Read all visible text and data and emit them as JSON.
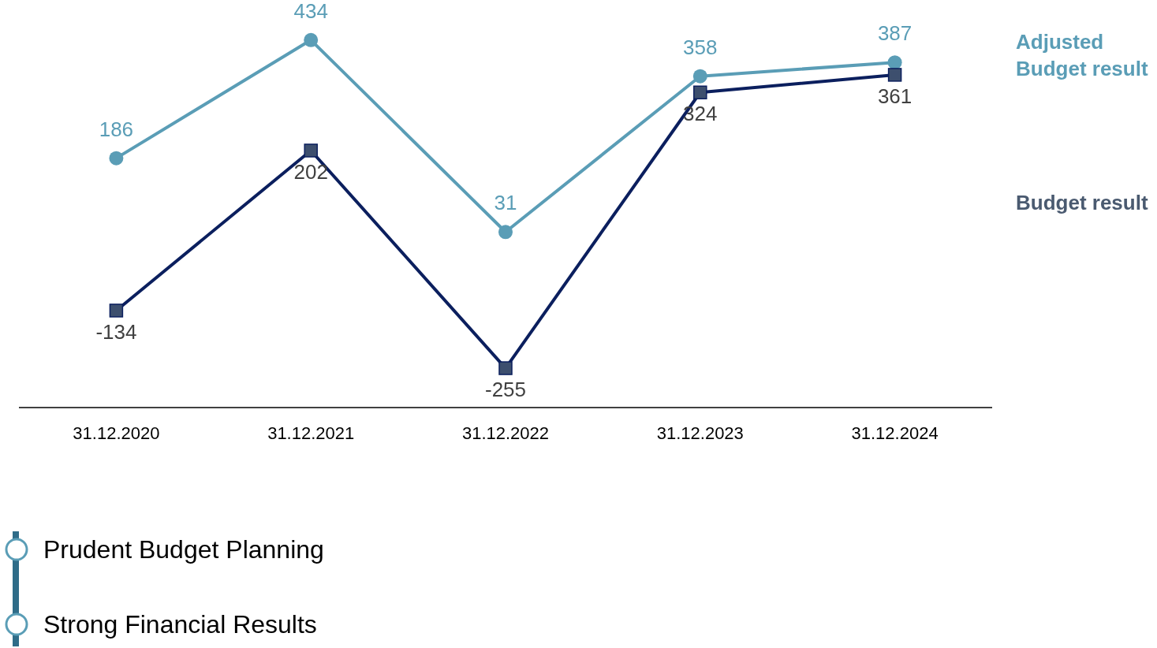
{
  "chart_data": {
    "type": "line",
    "categories": [
      "31.12.2020",
      "31.12.2021",
      "31.12.2022",
      "31.12.2023",
      "31.12.2024"
    ],
    "series": [
      {
        "name": "Adjusted Budget result",
        "color": "#5a9db6",
        "marker": "circle",
        "values": [
          186,
          434,
          31,
          358,
          387
        ]
      },
      {
        "name": "Budget result",
        "color": "#0b1f5e",
        "marker": "square",
        "values": [
          -134,
          202,
          -255,
          324,
          361
        ]
      }
    ],
    "data_labels": true,
    "legend": "right",
    "grid": false,
    "annotations": [
      "Prudent Budget Planning",
      "Strong Financial Results"
    ]
  }
}
